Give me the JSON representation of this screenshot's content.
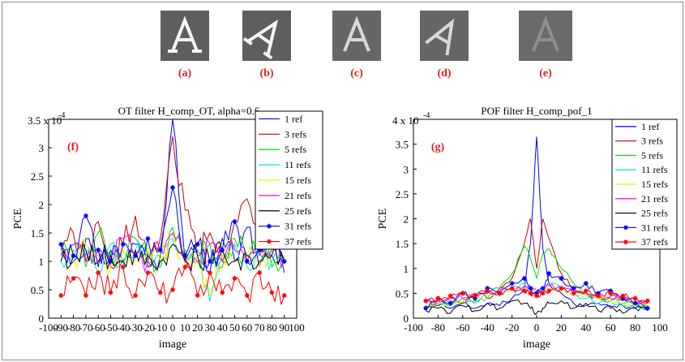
{
  "images": [
    {
      "label": "(a)",
      "glyph": "A",
      "rotation": 0,
      "style": "clear"
    },
    {
      "label": "(b)",
      "glyph": "A",
      "rotation": 35,
      "style": "clear"
    },
    {
      "label": "(c)",
      "glyph": "A",
      "rotation": 0,
      "style": "light"
    },
    {
      "label": "(d)",
      "glyph": "A",
      "rotation": 30,
      "style": "light"
    },
    {
      "label": "(e)",
      "glyph": "A",
      "rotation": 0,
      "style": "faint"
    }
  ],
  "colors": {
    "panel_label": "#e02020",
    "series": [
      "#0000ff",
      "#cc0000",
      "#00dd00",
      "#00e5e5",
      "#f0f000",
      "#ff00ff",
      "#000000",
      "#0000ff",
      "#ff0000"
    ]
  },
  "chart_data": [
    {
      "type": "line",
      "panel": "(f)",
      "title": "OT filter H_comp_OT, alpha=0.6",
      "xlabel": "image",
      "ylabel": "PCE",
      "y_exponent": "x 10",
      "y_exponent_power": "-4",
      "xlim": [
        -100,
        100
      ],
      "ylim": [
        0,
        3.5
      ],
      "xticks": [
        "-100",
        "-90",
        "-80",
        "-70",
        "-60",
        "-50",
        "-40",
        "-30",
        "-20",
        "-10",
        "0",
        "10",
        "20",
        "30",
        "40",
        "50",
        "60",
        "70",
        "80",
        "90",
        "100"
      ],
      "yticks": [
        "0",
        "0.5",
        "1",
        "1.5",
        "2",
        "2.5",
        "3",
        "3.5"
      ],
      "legend_position": "top-right",
      "grid": false,
      "x": [
        -90,
        -80,
        -70,
        -60,
        -50,
        -40,
        -30,
        -20,
        -10,
        0,
        10,
        20,
        30,
        40,
        50,
        60,
        70,
        80,
        90
      ],
      "series": [
        {
          "name": "1 ref",
          "marker": "none",
          "values": [
            1.3,
            1.0,
            1.4,
            0.9,
            1.2,
            1.0,
            1.3,
            0.9,
            1.1,
            3.5,
            1.0,
            1.2,
            0.8,
            1.4,
            1.0,
            1.6,
            0.9,
            1.1,
            0.8
          ]
        },
        {
          "name": "3 refs",
          "marker": "none",
          "values": [
            1.2,
            1.5,
            1.0,
            1.7,
            0.9,
            1.3,
            1.8,
            1.0,
            1.4,
            3.2,
            1.9,
            1.1,
            1.5,
            1.0,
            1.7,
            2.1,
            1.2,
            1.4,
            1.0
          ]
        },
        {
          "name": "5 refs",
          "marker": "none",
          "values": [
            1.1,
            1.3,
            0.9,
            1.5,
            1.2,
            1.0,
            1.4,
            1.1,
            0.9,
            1.6,
            1.2,
            1.0,
            1.3,
            0.9,
            1.4,
            1.1,
            1.3,
            0.9,
            1.1
          ]
        },
        {
          "name": "11 refs",
          "marker": "none",
          "values": [
            1.0,
            1.2,
            1.1,
            0.8,
            1.3,
            0.9,
            1.2,
            1.0,
            1.1,
            1.4,
            1.0,
            1.2,
            0.3,
            1.1,
            1.3,
            0.9,
            1.2,
            1.0,
            1.2
          ]
        },
        {
          "name": "15 refs",
          "marker": "none",
          "values": [
            1.2,
            1.0,
            1.3,
            1.1,
            0.9,
            1.2,
            1.0,
            1.3,
            1.0,
            1.5,
            0.9,
            1.1,
            0.4,
            1.2,
            1.0,
            1.1,
            0.9,
            1.3,
            1.0
          ]
        },
        {
          "name": "21 refs",
          "marker": "none",
          "values": [
            1.1,
            1.3,
            1.0,
            1.2,
            1.0,
            1.4,
            1.1,
            1.0,
            1.2,
            1.5,
            1.1,
            1.0,
            1.3,
            1.0,
            1.2,
            1.0,
            1.1,
            1.2,
            1.0
          ]
        },
        {
          "name": "25 refs",
          "marker": "none",
          "values": [
            1.0,
            1.1,
            1.2,
            1.0,
            1.1,
            1.0,
            1.2,
            1.1,
            1.0,
            1.3,
            1.0,
            1.1,
            1.0,
            1.2,
            1.0,
            1.1,
            1.0,
            1.1,
            1.0
          ]
        },
        {
          "name": "31 refs",
          "marker": "star",
          "values": [
            1.3,
            1.1,
            1.8,
            1.2,
            1.0,
            1.3,
            1.1,
            1.4,
            1.2,
            2.3,
            1.1,
            1.3,
            1.0,
            1.2,
            1.7,
            1.0,
            1.2,
            1.5,
            1.0
          ]
        },
        {
          "name": "37 refs",
          "marker": "star",
          "values": [
            0.4,
            0.7,
            0.4,
            0.8,
            0.45,
            0.9,
            0.4,
            0.8,
            0.45,
            0.5,
            0.9,
            0.4,
            0.8,
            0.45,
            0.7,
            0.4,
            0.8,
            0.45,
            0.4
          ]
        }
      ]
    },
    {
      "type": "line",
      "panel": "(g)",
      "title": "POF filter H_comp_pof_1",
      "xlabel": "image",
      "ylabel": "PCE",
      "y_exponent": "x 10",
      "y_exponent_power": "-4",
      "xlim": [
        -100,
        100
      ],
      "ylim": [
        0,
        4
      ],
      "xticks": [
        "-100",
        "-80",
        "-60",
        "-40",
        "-20",
        "0",
        "20",
        "40",
        "60",
        "80",
        "100"
      ],
      "yticks": [
        "0",
        "0.5",
        "1",
        "1.5",
        "2",
        "2.5",
        "3",
        "3.5",
        "4"
      ],
      "legend_position": "top-right",
      "grid": false,
      "x": [
        -90,
        -80,
        -70,
        -60,
        -50,
        -40,
        -30,
        -20,
        -10,
        -5,
        0,
        5,
        10,
        20,
        30,
        40,
        50,
        60,
        70,
        80,
        90
      ],
      "series": [
        {
          "name": "1 ref",
          "marker": "none",
          "values": [
            0.2,
            0.25,
            0.2,
            0.3,
            0.2,
            0.3,
            0.25,
            0.4,
            0.6,
            1.5,
            3.65,
            1.4,
            0.7,
            0.5,
            0.3,
            0.25,
            0.3,
            0.2,
            0.25,
            0.2,
            0.2
          ]
        },
        {
          "name": "3 refs",
          "marker": "none",
          "values": [
            0.3,
            0.35,
            0.4,
            0.3,
            0.5,
            0.4,
            0.6,
            0.8,
            1.5,
            2.0,
            1.0,
            2.0,
            1.6,
            0.9,
            0.6,
            0.5,
            0.4,
            0.45,
            0.35,
            0.3,
            0.3
          ]
        },
        {
          "name": "5 refs",
          "marker": "none",
          "values": [
            0.25,
            0.3,
            0.35,
            0.4,
            0.35,
            0.5,
            0.6,
            0.9,
            1.45,
            1.2,
            0.8,
            1.3,
            1.4,
            1.0,
            0.7,
            0.5,
            0.4,
            0.35,
            0.3,
            0.3,
            0.25
          ]
        },
        {
          "name": "11 refs",
          "marker": "none",
          "values": [
            0.2,
            0.3,
            0.25,
            0.35,
            0.3,
            0.4,
            0.5,
            0.6,
            0.7,
            0.6,
            0.5,
            0.6,
            0.7,
            0.6,
            0.5,
            0.4,
            0.3,
            0.35,
            0.25,
            0.3,
            0.2
          ]
        },
        {
          "name": "15 refs",
          "marker": "none",
          "values": [
            0.25,
            0.3,
            0.3,
            0.35,
            0.4,
            0.45,
            0.5,
            0.55,
            0.6,
            0.55,
            0.5,
            0.55,
            0.6,
            0.55,
            0.5,
            0.45,
            0.4,
            0.35,
            0.3,
            0.3,
            0.25
          ]
        },
        {
          "name": "21 refs",
          "marker": "none",
          "values": [
            0.3,
            0.35,
            0.4,
            0.4,
            0.45,
            0.5,
            0.55,
            0.6,
            0.65,
            0.6,
            0.55,
            0.6,
            0.65,
            0.6,
            0.55,
            0.5,
            0.45,
            0.4,
            0.4,
            0.35,
            0.3
          ]
        },
        {
          "name": "25 refs",
          "marker": "none",
          "values": [
            0.15,
            0.2,
            0.1,
            0.25,
            0.15,
            0.3,
            0.2,
            0.35,
            0.3,
            0.2,
            0.1,
            0.2,
            0.3,
            0.35,
            0.2,
            0.3,
            0.15,
            0.25,
            0.1,
            0.2,
            0.15
          ]
        },
        {
          "name": "31 refs",
          "marker": "star",
          "values": [
            0.2,
            0.4,
            0.3,
            0.5,
            0.4,
            0.6,
            0.5,
            0.7,
            0.8,
            0.6,
            0.5,
            0.6,
            0.9,
            0.8,
            0.6,
            0.7,
            0.5,
            0.55,
            0.4,
            0.3,
            0.2
          ]
        },
        {
          "name": "37 refs",
          "marker": "star",
          "values": [
            0.35,
            0.4,
            0.45,
            0.5,
            0.45,
            0.55,
            0.5,
            0.6,
            0.55,
            0.5,
            0.45,
            0.5,
            0.55,
            0.6,
            0.5,
            0.55,
            0.45,
            0.5,
            0.45,
            0.4,
            0.35
          ]
        }
      ]
    }
  ]
}
